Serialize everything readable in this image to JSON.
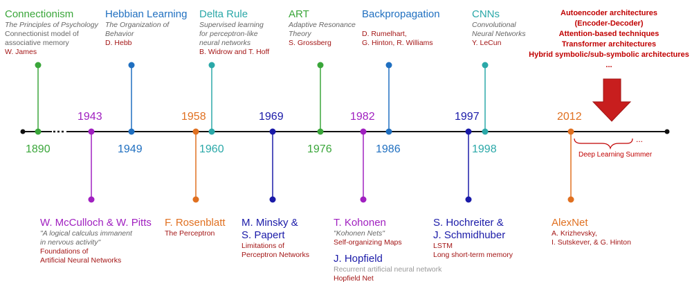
{
  "colors": {
    "green": "#3aa63a",
    "blue": "#1f6fc0",
    "teal": "#2aa8a8",
    "purple": "#a020c0",
    "orange": "#e07020",
    "navy": "#1a1aa8",
    "dark_red": "#a31515",
    "arrow_red": "#c81e1e",
    "axis": "#111111"
  },
  "events": {
    "connectionism": {
      "year": "1890",
      "title": "Connectionism",
      "subtitle": [
        "The Principles of Psychology"
      ],
      "note": [
        "Connectionist model of",
        "associative memory"
      ],
      "authors": [
        "W. James"
      ]
    },
    "hebbian": {
      "year": "1949",
      "title": "Hebbian Learning",
      "subtitle": [
        "The Organization of",
        "Behavior"
      ],
      "authors": [
        "D. Hebb"
      ]
    },
    "delta": {
      "year": "1960",
      "title": "Delta Rule",
      "subtitle": [
        "Supervised learning",
        "for perceptron-like",
        "neural networks"
      ],
      "authors": [
        "B. Widrow and T. Hoff"
      ]
    },
    "art": {
      "year": "1976",
      "title": "ART",
      "subtitle": [
        "Adaptive Resonance",
        "Theory"
      ],
      "authors": [
        "S. Grossberg"
      ]
    },
    "backprop": {
      "year": "1986",
      "title": "Backpropagation",
      "authors": [
        "D. Rumelhart,",
        "G. Hinton, R. Williams"
      ]
    },
    "cnns": {
      "year": "1998",
      "title": "CNNs",
      "subtitle": [
        "Convolutional",
        "Neural Networks"
      ],
      "authors": [
        "Y. LeCun"
      ]
    },
    "mcculloch": {
      "year": "1943",
      "title": "W. McCulloch & W. Pitts",
      "subtitle": [
        "\"A logical calculus immanent",
        "in nervous activity\""
      ],
      "authors": [
        "Foundations of",
        "Artificial Neural Networks"
      ]
    },
    "rosenblatt": {
      "year": "1958",
      "title": "F. Rosenblatt",
      "authors": [
        "The Perceptron"
      ]
    },
    "minsky": {
      "year": "1969",
      "title_lines": [
        "M. Minsky &",
        "S. Papert"
      ],
      "authors": [
        "Limitations of",
        "Perceptron Networks"
      ]
    },
    "kohonen": {
      "year": "1982",
      "title": "T. Kohonen",
      "subtitle": [
        "\"Kohonen Nets\""
      ],
      "authors": [
        "Self-organizing Maps"
      ],
      "title2": "J. Hopfield",
      "note2": [
        "Recurrent artificial neural network"
      ],
      "authors2": [
        "Hopfield Net"
      ]
    },
    "lstm": {
      "year": "1997",
      "title_lines": [
        "S. Hochreiter &",
        "J. Schmidhuber"
      ],
      "authors": [
        "LSTM",
        "Long short-term memory"
      ]
    },
    "alexnet": {
      "year": "2012",
      "title": "AlexNet",
      "authors": [
        "A. Krizhevsky,",
        "I. Sutskever, & G. Hinton"
      ]
    }
  },
  "contemporary": {
    "lines": [
      "Autoencoder architectures",
      "(Encoder-Decoder)",
      "Attention-based techniques",
      "Transformer architectures",
      "Hybrid symbolic/sub-symbolic architectures",
      "..."
    ]
  },
  "deep_learning_summer": "Deep Learning Summer",
  "trailing_ellipsis": "..."
}
